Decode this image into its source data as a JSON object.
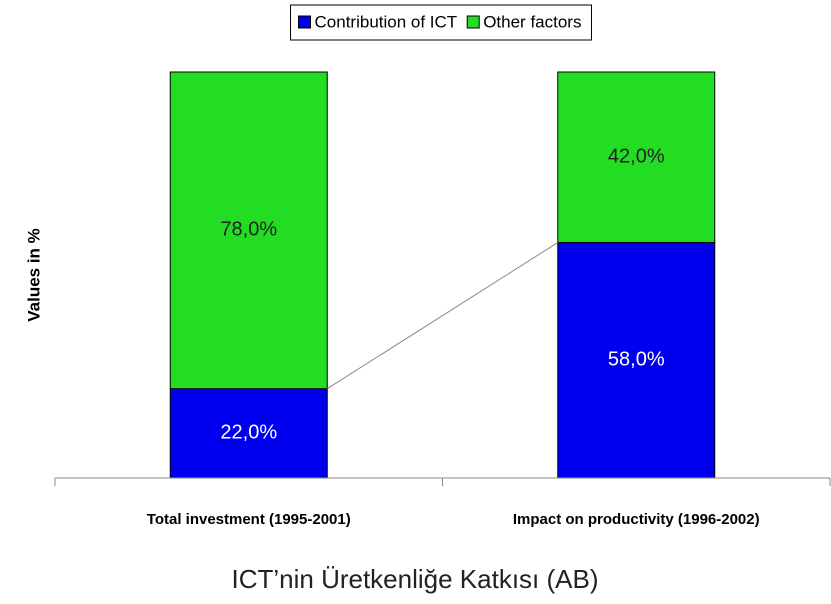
{
  "chart_data": {
    "type": "stacked_bar",
    "title": "ICT’nin Üretkenliğe Katkısı (AB)",
    "y_label": "Values in %",
    "categories": [
      "Total investment (1995-2001)",
      "Impact on productivity (1996-2002)"
    ],
    "series": [
      {
        "name": "Contribution of ICT",
        "color": "#0000ee",
        "values": [
          22,
          58
        ],
        "value_labels": [
          "22,0%",
          "58,0%"
        ]
      },
      {
        "name": "Other factors",
        "color": "#22dd22",
        "values": [
          78,
          42
        ],
        "value_labels": [
          "78,0%",
          "42,0%"
        ]
      }
    ],
    "ylim": [
      0,
      100
    ],
    "legend": "top"
  }
}
